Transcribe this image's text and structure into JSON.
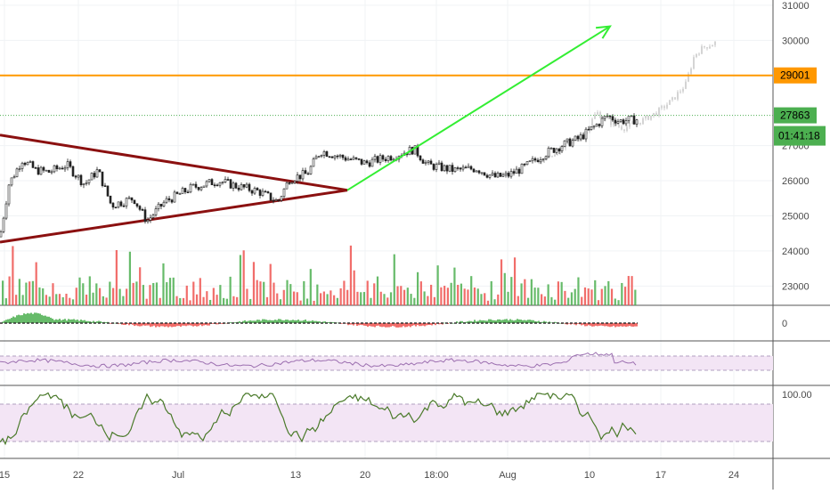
{
  "chart_data": {
    "type": "candlestick",
    "price_axis": {
      "ticks": [
        23000,
        24000,
        25000,
        26000,
        27000,
        29001,
        30000,
        31000
      ],
      "labels": [
        "23000",
        "24000",
        "25000",
        "26000",
        "27000",
        "29001",
        "30000",
        "31000"
      ],
      "range": [
        22450,
        31150
      ]
    },
    "time_axis": {
      "labels": [
        "15",
        "22",
        "Jul",
        "13",
        "20",
        "18:00",
        "Aug",
        "10",
        "17",
        "24"
      ]
    },
    "current_price": {
      "value": 27863,
      "label": "27863",
      "countdown": "01:41:18",
      "color": "#4caf50"
    },
    "resistance": {
      "value": 29001,
      "label": "29001",
      "color": "#ff9800"
    },
    "price_series": {
      "anchors": [
        [
          0,
          24400
        ],
        [
          10,
          25900
        ],
        [
          25,
          26600
        ],
        [
          40,
          26300
        ],
        [
          55,
          26250
        ],
        [
          75,
          26450
        ],
        [
          95,
          25900
        ],
        [
          110,
          26300
        ],
        [
          125,
          25300
        ],
        [
          150,
          25500
        ],
        [
          165,
          24850
        ],
        [
          185,
          25400
        ],
        [
          215,
          25800
        ],
        [
          245,
          26000
        ],
        [
          265,
          25850
        ],
        [
          290,
          25700
        ],
        [
          312,
          25400
        ],
        [
          325,
          26050
        ],
        [
          345,
          26200
        ],
        [
          360,
          26850
        ],
        [
          380,
          26700
        ],
        [
          410,
          26500
        ],
        [
          440,
          26700
        ],
        [
          465,
          26900
        ],
        [
          480,
          26450
        ],
        [
          510,
          26300
        ],
        [
          535,
          26350
        ],
        [
          555,
          26100
        ],
        [
          570,
          26150
        ],
        [
          590,
          26400
        ],
        [
          610,
          26750
        ],
        [
          630,
          27000
        ],
        [
          650,
          27200
        ],
        [
          668,
          27550
        ],
        [
          682,
          27850
        ],
        [
          695,
          27700
        ],
        [
          718,
          27750
        ]
      ]
    },
    "projection_series": {
      "anchors": [
        [
          605,
          26500
        ],
        [
          630,
          26900
        ],
        [
          655,
          27300
        ],
        [
          670,
          27950
        ],
        [
          682,
          27700
        ],
        [
          700,
          27500
        ],
        [
          720,
          27700
        ],
        [
          738,
          27950
        ],
        [
          755,
          28300
        ],
        [
          770,
          28750
        ],
        [
          780,
          29600
        ],
        [
          790,
          29800
        ],
        [
          805,
          29950
        ]
      ]
    },
    "triangle": {
      "vertices": [
        [
          0,
          27300
        ],
        [
          390,
          25730
        ],
        [
          0,
          24250
        ]
      ],
      "color": "#8b1010"
    },
    "target_arrow": {
      "from": [
        390,
        25730
      ],
      "to": [
        685,
        30400
      ],
      "color": "#33ee33"
    },
    "volume": {
      "count": 190,
      "up_color": "#4caf50",
      "down_color": "#ef5350"
    },
    "macd_panel": {
      "zero_label": "0"
    },
    "rsi_panel": {
      "band": [
        30,
        70
      ],
      "band_color": "#f3e5f5",
      "line_color": "#9c6fb0"
    },
    "stoch_panel": {
      "label": "100.00",
      "band": [
        20,
        80
      ],
      "band_color": "#f3e5f5",
      "line_color": "#4a7a2a"
    }
  }
}
